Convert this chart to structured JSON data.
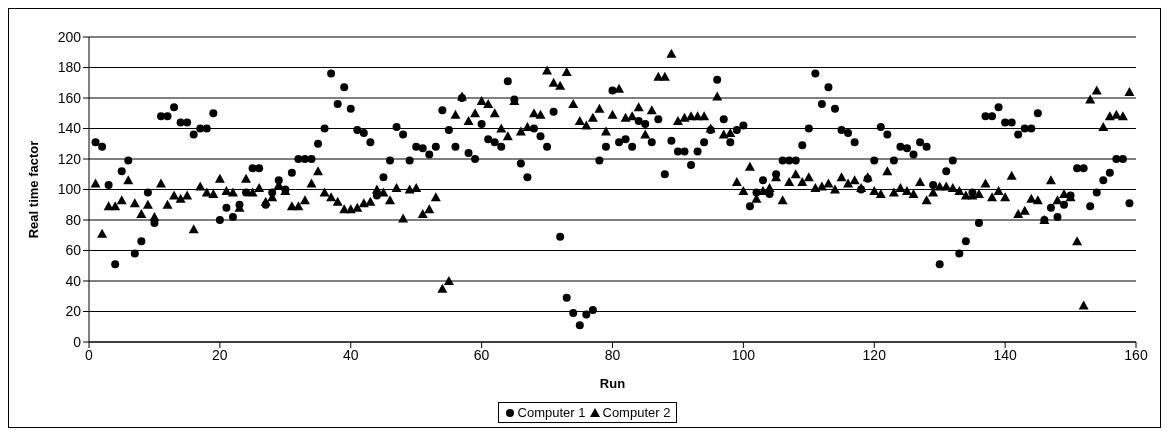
{
  "chart_data": {
    "type": "scatter",
    "xlabel": "Run",
    "ylabel": "Real time factor",
    "x": [
      1,
      2,
      3,
      4,
      5,
      6,
      7,
      8,
      9,
      10,
      11,
      12,
      13,
      14,
      15,
      16,
      17,
      18,
      19,
      20,
      21,
      22,
      23,
      24,
      25,
      26,
      27,
      28,
      29,
      30,
      31,
      32,
      33,
      34,
      35,
      36,
      37,
      38,
      39,
      40,
      41,
      42,
      43,
      44,
      45,
      46,
      47,
      48,
      49,
      50,
      51,
      52,
      53,
      54,
      55,
      56,
      57,
      58,
      59,
      60,
      61,
      62,
      63,
      64,
      65,
      66,
      67,
      68,
      69,
      70,
      71,
      72,
      73,
      74,
      75,
      76,
      77,
      78,
      79,
      80,
      81,
      82,
      83,
      84,
      85,
      86,
      87,
      88,
      89,
      90,
      91,
      92,
      93,
      94,
      95,
      96,
      97,
      98,
      99,
      100,
      101,
      102,
      103,
      104,
      105,
      106,
      107,
      108,
      109,
      110,
      111,
      112,
      113,
      114,
      115,
      116,
      117,
      118,
      119,
      120,
      121,
      122,
      123,
      124,
      125,
      126,
      127,
      128,
      129,
      130,
      131,
      132,
      133,
      134,
      135,
      136,
      137,
      138,
      139,
      140,
      141,
      142,
      143,
      144,
      145,
      146,
      147,
      148,
      149,
      150,
      151,
      152,
      153,
      154,
      155,
      156,
      157,
      158,
      159
    ],
    "series": [
      {
        "name": "Computer 1",
        "color": "#000000",
        "marker": "circle",
        "values": [
          131,
          128,
          103,
          51,
          112,
          119,
          58,
          66,
          98,
          78,
          148,
          148,
          154,
          144,
          144,
          136,
          140,
          140,
          150,
          80,
          88,
          82,
          90,
          98,
          114,
          114,
          90,
          98,
          106,
          100,
          111,
          120,
          120,
          120,
          130,
          140,
          176,
          156,
          167,
          153,
          139,
          137,
          131,
          96,
          108,
          119,
          141,
          136,
          119,
          128,
          127,
          123,
          128,
          152,
          139,
          128,
          160,
          124,
          120,
          143,
          133,
          131,
          128,
          171,
          159,
          117,
          108,
          140,
          135,
          128,
          151,
          69,
          29,
          19,
          11,
          18,
          21,
          119,
          128,
          165,
          131,
          133,
          128,
          145,
          143,
          131,
          146,
          110,
          132,
          125,
          125,
          116,
          125,
          131,
          139,
          172,
          146,
          131,
          139,
          142,
          89,
          98,
          106,
          97,
          110,
          119,
          119,
          119,
          129,
          140,
          176,
          156,
          167,
          153,
          139,
          137,
          131,
          100,
          107,
          119,
          141,
          136,
          119,
          128,
          127,
          123,
          131,
          128,
          103,
          51,
          112,
          119,
          58,
          66,
          98,
          78,
          148,
          148,
          154,
          144,
          144,
          136,
          140,
          140,
          150,
          80,
          88,
          82,
          90,
          96,
          114,
          114,
          89,
          98,
          106,
          111,
          120,
          120,
          91
        ]
      },
      {
        "name": "Computer 2",
        "color": "#000000",
        "marker": "triangle",
        "values": [
          104,
          71,
          89,
          89,
          93,
          106,
          91,
          84,
          90,
          82,
          104,
          90,
          96,
          94,
          96,
          74,
          102,
          98,
          97,
          107,
          99,
          98,
          88,
          107,
          98,
          101,
          92,
          95,
          103,
          99,
          89,
          89,
          93,
          104,
          112,
          98,
          95,
          92,
          87,
          87,
          88,
          91,
          92,
          100,
          98,
          93,
          101,
          81,
          100,
          101,
          84,
          87,
          95,
          35,
          40,
          149,
          161,
          145,
          150,
          158,
          156,
          150,
          140,
          135,
          158,
          138,
          141,
          150,
          149,
          178,
          170,
          168,
          177,
          156,
          145,
          142,
          147,
          153,
          138,
          149,
          166,
          147,
          148,
          154,
          136,
          152,
          174,
          174,
          189,
          145,
          147,
          148,
          148,
          148,
          140,
          161,
          136,
          137,
          105,
          99,
          115,
          94,
          99,
          101,
          108,
          93,
          105,
          110,
          105,
          108,
          101,
          102,
          104,
          100,
          108,
          104,
          106,
          101,
          108,
          99,
          97,
          112,
          98,
          101,
          99,
          97,
          105,
          93,
          98,
          102,
          102,
          101,
          99,
          96,
          96,
          97,
          104,
          95,
          99,
          95,
          109,
          84,
          86,
          94,
          93,
          80,
          106,
          93,
          97,
          95,
          66,
          24,
          159,
          165,
          141,
          148,
          149,
          148,
          164
        ]
      }
    ],
    "xlim": [
      0,
      160
    ],
    "xticks": [
      0,
      20,
      40,
      60,
      80,
      100,
      120,
      140,
      160
    ],
    "ylim": [
      0,
      200
    ],
    "yticks": [
      0,
      20,
      40,
      60,
      80,
      100,
      120,
      140,
      160,
      180,
      200
    ],
    "grid": "y",
    "legend": "bottom"
  }
}
